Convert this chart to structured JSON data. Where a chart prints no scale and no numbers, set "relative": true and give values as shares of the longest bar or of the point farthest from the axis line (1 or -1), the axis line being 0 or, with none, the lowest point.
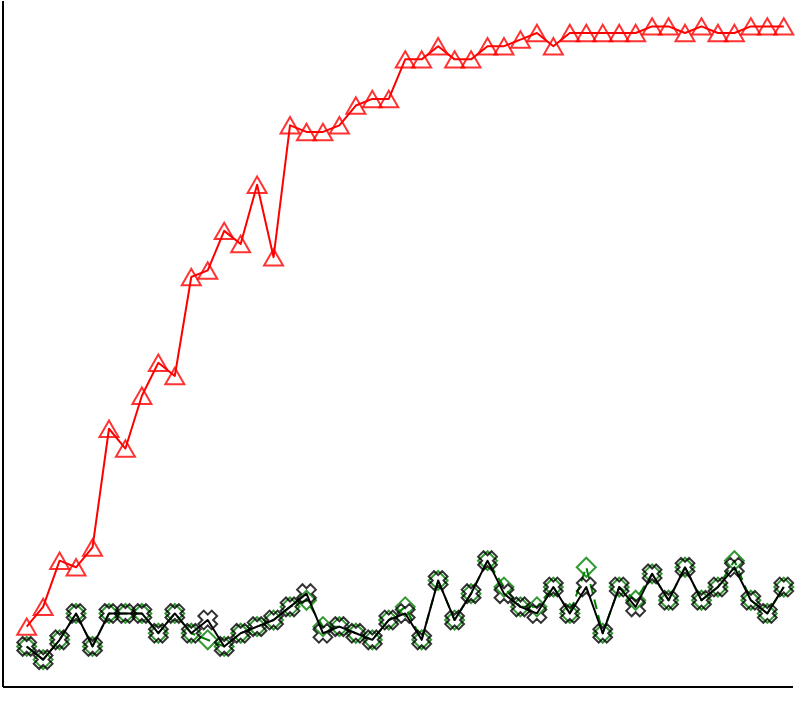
{
  "chart_data": {
    "type": "line",
    "relative": true,
    "categories": [
      null,
      null,
      null,
      null,
      null,
      null,
      null,
      null,
      null,
      null,
      null,
      null,
      null,
      null,
      null,
      null,
      null,
      null,
      null,
      null,
      null,
      null,
      null,
      null,
      null,
      null,
      null,
      null,
      null,
      null,
      null,
      null,
      null,
      null,
      null,
      null,
      null,
      null,
      null,
      null,
      null,
      null,
      null,
      null,
      null,
      null,
      null
    ],
    "series": [
      {
        "color": "#ff0000",
        "marker": "triangle",
        "line_style": "solid",
        "values": [
          0.09,
          0.12,
          0.19,
          0.18,
          0.21,
          0.39,
          0.36,
          0.44,
          0.49,
          0.47,
          0.62,
          0.63,
          0.69,
          0.67,
          0.76,
          0.65,
          0.85,
          0.84,
          0.84,
          0.85,
          0.88,
          0.89,
          0.89,
          0.95,
          0.95,
          0.97,
          0.95,
          0.95,
          0.97,
          0.97,
          0.98,
          0.99,
          0.97,
          0.99,
          0.99,
          0.99,
          0.99,
          0.99,
          1,
          1,
          0.99,
          1,
          0.99,
          0.99,
          1,
          1,
          1
        ]
      },
      {
        "color": "#008000",
        "marker": "diamond",
        "line_style": "dashed",
        "values": [
          0.06,
          0.04,
          0.07,
          0.11,
          0.06,
          0.11,
          0.11,
          0.11,
          0.08,
          0.11,
          0.08,
          0.07,
          0.06,
          0.08,
          0.09,
          0.1,
          0.12,
          0.13,
          0.09,
          0.09,
          0.08,
          0.07,
          0.1,
          0.12,
          0.07,
          0.16,
          0.1,
          0.14,
          0.19,
          0.15,
          0.12,
          0.12,
          0.15,
          0.11,
          0.18,
          0.08,
          0.15,
          0.13,
          0.17,
          0.13,
          0.18,
          0.13,
          0.15,
          0.19,
          0.13,
          0.11,
          0.15
        ]
      },
      {
        "color": "#000000",
        "marker": "cross",
        "line_style": "solid",
        "values": [
          0.06,
          0.04,
          0.07,
          0.11,
          0.06,
          0.11,
          0.11,
          0.11,
          0.08,
          0.11,
          0.08,
          0.1,
          0.06,
          0.08,
          0.09,
          0.1,
          0.12,
          0.14,
          0.08,
          0.09,
          0.08,
          0.07,
          0.1,
          0.11,
          0.07,
          0.16,
          0.1,
          0.14,
          0.19,
          0.14,
          0.12,
          0.11,
          0.15,
          0.11,
          0.15,
          0.08,
          0.15,
          0.12,
          0.17,
          0.13,
          0.18,
          0.13,
          0.15,
          0.18,
          0.13,
          0.11,
          0.15
        ]
      }
    ]
  }
}
